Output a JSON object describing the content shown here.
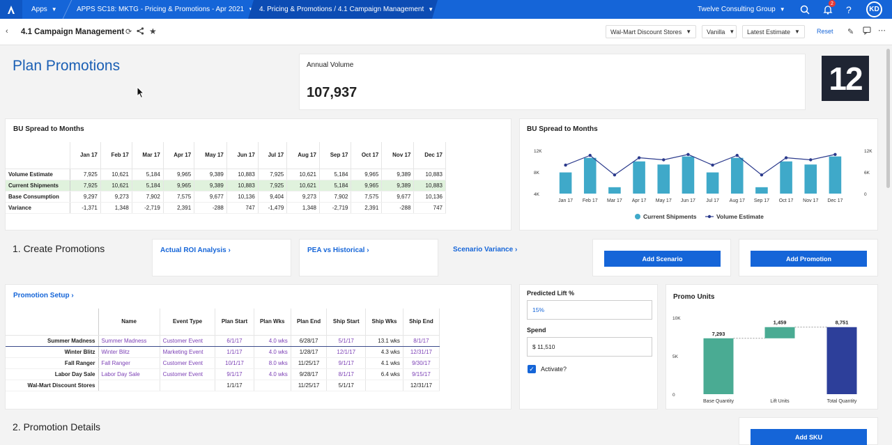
{
  "topbar": {
    "apps_label": "Apps",
    "crumb_model": "APPS SC18: MKTG - Pricing & Promotions - Apr 2021",
    "crumb_page": "4. Pricing & Promotions / 4.1 Campaign Management",
    "org": "Twelve Consulting Group",
    "notif_count": "2",
    "user_initials": "KD"
  },
  "subbar": {
    "title": "4.1 Campaign Management",
    "filter_store": "Wal-Mart Discount Stores",
    "filter_version": "Vanilla",
    "filter_estimate": "Latest Estimate",
    "reset_label": "Reset"
  },
  "header": {
    "heading": "Plan Promotions",
    "annual_volume_label": "Annual Volume",
    "annual_volume_value": "107,937",
    "logo_text": "12"
  },
  "bu_table": {
    "title": "BU Spread to Months",
    "months": [
      "Jan 17",
      "Feb 17",
      "Mar 17",
      "Apr 17",
      "May 17",
      "Jun 17",
      "Jul 17",
      "Aug 17",
      "Sep 17",
      "Oct 17",
      "Nov 17",
      "Dec 17"
    ],
    "rows": [
      {
        "label": "Volume Estimate",
        "values": [
          "7,925",
          "10,621",
          "5,184",
          "9,965",
          "9,389",
          "10,883",
          "7,925",
          "10,621",
          "5,184",
          "9,965",
          "9,389",
          "10,883"
        ]
      },
      {
        "label": "Current Shipments",
        "values": [
          "7,925",
          "10,621",
          "5,184",
          "9,965",
          "9,389",
          "10,883",
          "7,925",
          "10,621",
          "5,184",
          "9,965",
          "9,389",
          "10,883"
        ]
      },
      {
        "label": "Base Consumption",
        "values": [
          "9,297",
          "9,273",
          "7,902",
          "7,575",
          "9,677",
          "10,136",
          "9,404",
          "9,273",
          "7,902",
          "7,575",
          "9,677",
          "10,136"
        ]
      },
      {
        "label": "Variance",
        "values": [
          "-1,371",
          "1,348",
          "-2,719",
          "2,391",
          "-288",
          "747",
          "-1,479",
          "1,348",
          "-2,719",
          "2,391",
          "-288",
          "747"
        ]
      }
    ]
  },
  "chart_data": [
    {
      "type": "bar",
      "title": "BU Spread to Months",
      "categories": [
        "Jan 17",
        "Feb 17",
        "Mar 17",
        "Apr 17",
        "May 17",
        "Jun 17",
        "Jul 17",
        "Aug 17",
        "Sep 17",
        "Oct 17",
        "Nov 17",
        "Dec 17"
      ],
      "series": [
        {
          "name": "Current Shipments",
          "kind": "bar",
          "axis": "left",
          "color": "#3fa9c9",
          "values": [
            7925,
            10621,
            5184,
            9965,
            9389,
            10883,
            7925,
            10621,
            5184,
            9965,
            9389,
            10883
          ]
        },
        {
          "name": "Volume Estimate",
          "kind": "line",
          "axis": "right",
          "color": "#2b3a8c",
          "values": [
            7925,
            10621,
            5184,
            9965,
            9389,
            10883,
            7925,
            10621,
            5184,
            9965,
            9389,
            10883
          ]
        }
      ],
      "left_ticks": [
        "12K",
        "8K",
        "4K"
      ],
      "right_ticks": [
        "12K",
        "6K",
        "0"
      ],
      "ylim_left": [
        4000,
        12000
      ],
      "ylim_right": [
        0,
        12000
      ],
      "legend": "bottom"
    },
    {
      "type": "bar",
      "title": "Promo Units",
      "categories": [
        "Base Quantity",
        "Lift Units",
        "Total Quantity"
      ],
      "values": [
        7293,
        1459,
        8751
      ],
      "labels": [
        "7,293",
        "1,459",
        "8,751"
      ],
      "colors": [
        "#4aab93",
        "#4aab93",
        "#2d3f9a"
      ],
      "waterfall": true,
      "y_ticks": [
        "10K",
        "5K",
        "0"
      ],
      "ylim": [
        0,
        10000
      ]
    }
  ],
  "create": {
    "heading": "1. Create Promotions",
    "links": [
      "Actual ROI Analysis",
      "PEA vs Historical",
      "Scenario Variance"
    ],
    "add_scenario": "Add Scenario",
    "add_promotion": "Add Promotion"
  },
  "promo_setup": {
    "title": "Promotion Setup",
    "columns": [
      "Name",
      "Event Type",
      "Plan Start",
      "Plan Wks",
      "Plan End",
      "Ship Start",
      "Ship Wks",
      "Ship End"
    ],
    "rows": [
      {
        "label": "Summer Madness",
        "name": "Summer Madness",
        "event": "Customer Event",
        "plan_start": "6/1/17",
        "plan_wks": "4.0 wks",
        "plan_end": "6/28/17",
        "ship_start": "5/1/17",
        "ship_wks": "13.1 wks",
        "ship_end": "8/1/17"
      },
      {
        "label": "Winter Blitz",
        "name": "Winter Blitz",
        "event": "Marketing Event",
        "plan_start": "1/1/17",
        "plan_wks": "4.0 wks",
        "plan_end": "1/28/17",
        "ship_start": "12/1/17",
        "ship_wks": "4.3 wks",
        "ship_end": "12/31/17"
      },
      {
        "label": "Fall Ranger",
        "name": "Fall Ranger",
        "event": "Customer Event",
        "plan_start": "10/1/17",
        "plan_wks": "8.0 wks",
        "plan_end": "11/25/17",
        "ship_start": "9/1/17",
        "ship_wks": "4.1 wks",
        "ship_end": "9/30/17"
      },
      {
        "label": "Labor Day Sale",
        "name": "Labor Day Sale",
        "event": "Customer Event",
        "plan_start": "9/1/17",
        "plan_wks": "4.0 wks",
        "plan_end": "9/28/17",
        "ship_start": "8/1/17",
        "ship_wks": "6.4 wks",
        "ship_end": "9/15/17"
      },
      {
        "label": "Wal-Mart Discount Stores",
        "name": "",
        "event": "",
        "plan_start": "1/1/17",
        "plan_wks": "",
        "plan_end": "11/25/17",
        "ship_start": "5/1/17",
        "ship_wks": "",
        "ship_end": "12/31/17"
      }
    ]
  },
  "lift_panel": {
    "lift_label": "Predicted Lift %",
    "lift_placeholder": "15%",
    "spend_label": "Spend",
    "spend_value": "$ 11,510",
    "activate_label": "Activate?"
  },
  "details": {
    "heading": "2. Promotion Details",
    "add_sku": "Add SKU"
  }
}
